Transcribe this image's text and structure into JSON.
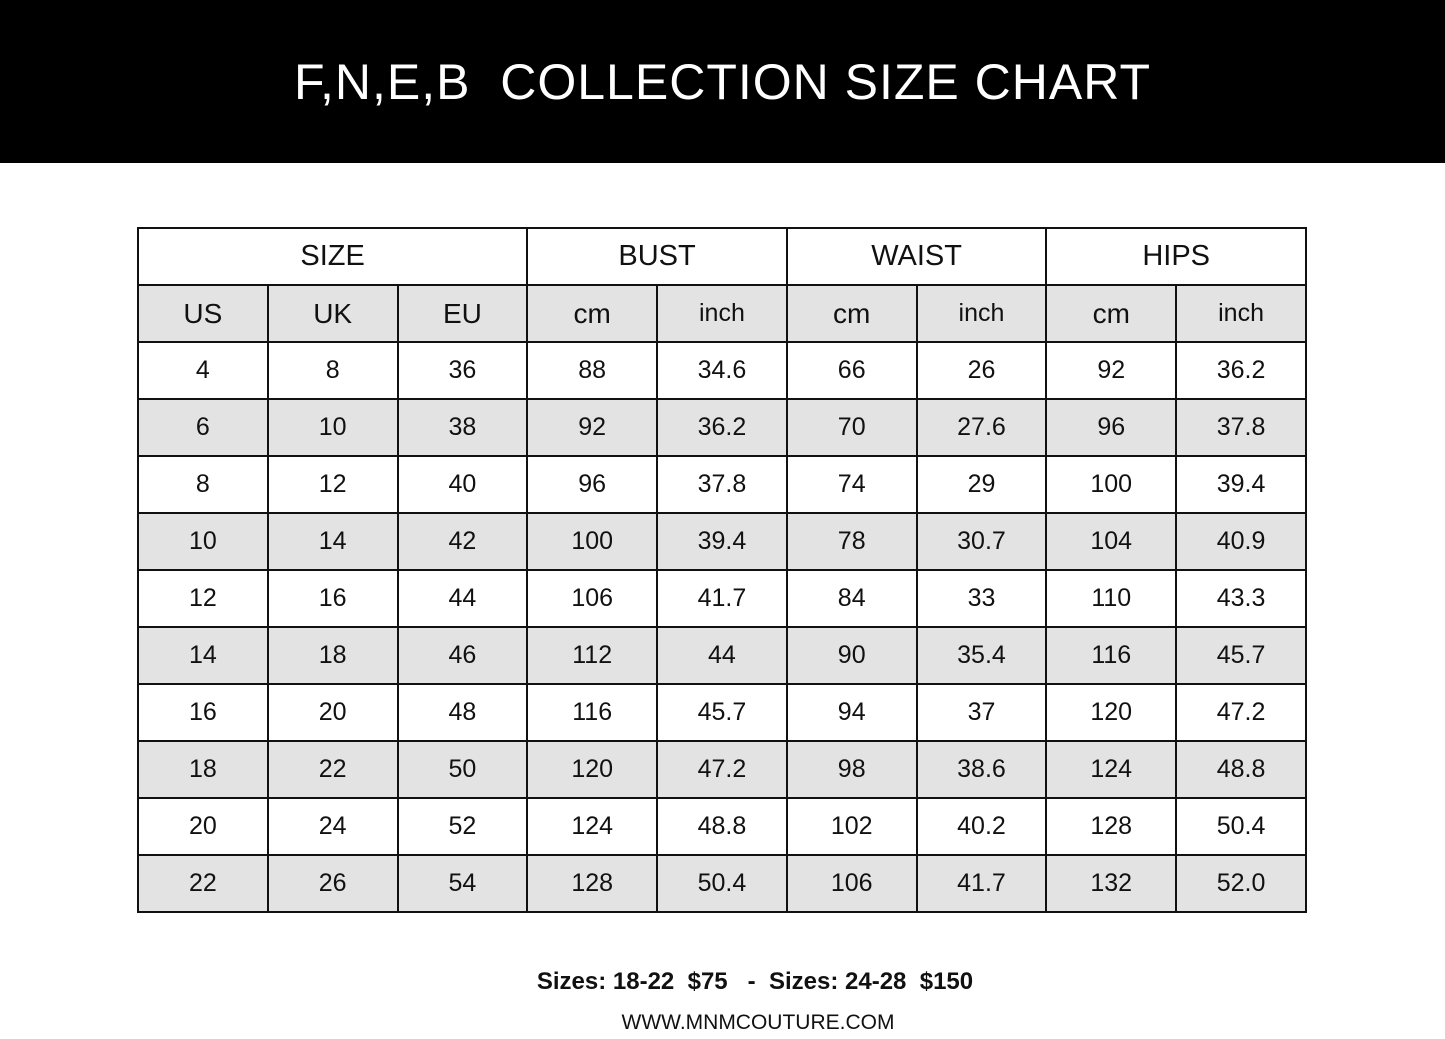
{
  "title": "F,N,E,B  COLLECTION SIZE CHART",
  "table": {
    "groups": [
      "SIZE",
      "BUST",
      "WAIST",
      "HIPS"
    ],
    "subheaders": [
      "US",
      "UK",
      "EU",
      "cm",
      "inch",
      "cm",
      "inch",
      "cm",
      "inch"
    ],
    "rows": [
      [
        "4",
        "8",
        "36",
        "88",
        "34.6",
        "66",
        "26",
        "92",
        "36.2"
      ],
      [
        "6",
        "10",
        "38",
        "92",
        "36.2",
        "70",
        "27.6",
        "96",
        "37.8"
      ],
      [
        "8",
        "12",
        "40",
        "96",
        "37.8",
        "74",
        "29",
        "100",
        "39.4"
      ],
      [
        "10",
        "14",
        "42",
        "100",
        "39.4",
        "78",
        "30.7",
        "104",
        "40.9"
      ],
      [
        "12",
        "16",
        "44",
        "106",
        "41.7",
        "84",
        "33",
        "110",
        "43.3"
      ],
      [
        "14",
        "18",
        "46",
        "112",
        "44",
        "90",
        "35.4",
        "116",
        "45.7"
      ],
      [
        "16",
        "20",
        "48",
        "116",
        "45.7",
        "94",
        "37",
        "120",
        "47.2"
      ],
      [
        "18",
        "22",
        "50",
        "120",
        "47.2",
        "98",
        "38.6",
        "124",
        "48.8"
      ],
      [
        "20",
        "24",
        "52",
        "124",
        "48.8",
        "102",
        "40.2",
        "128",
        "50.4"
      ],
      [
        "22",
        "26",
        "54",
        "128",
        "50.4",
        "106",
        "41.7",
        "132",
        "52.0"
      ]
    ]
  },
  "footer": {
    "pricing": "Sizes: 18-22  $75   -  Sizes: 24-28  $150",
    "website": "WWW.MNMCOUTURE.COM"
  }
}
